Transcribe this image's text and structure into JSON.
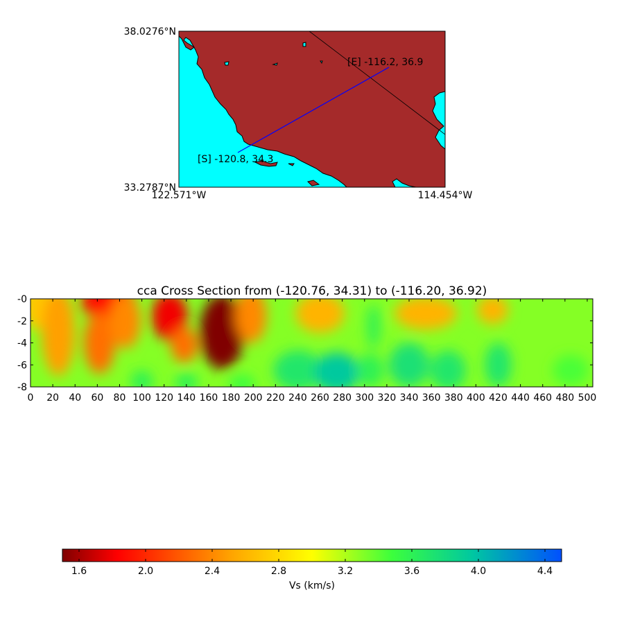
{
  "map": {
    "lat_top_label": "38.0276°N",
    "lat_bottom_label": "33.2787°N",
    "lon_left_label": "122.571°W",
    "lon_right_label": "114.454°W",
    "start_label": "[S] -120.8, 34.3",
    "end_label": "[E] -116.2, 36.9",
    "land_color": "#a52a2a",
    "water_color": "#00ffff",
    "profile_line_color": "#0000ff"
  },
  "chart_data": [
    {
      "type": "heatmap",
      "title": "cca Cross Section from (-120.76, 34.31) to (-116.20, 36.92)",
      "xlabel": "",
      "ylabel": "",
      "xlim": [
        0,
        505
      ],
      "ylim": [
        -8,
        0
      ],
      "x_ticks": [
        "0",
        "20",
        "40",
        "60",
        "80",
        "100",
        "120",
        "140",
        "160",
        "180",
        "200",
        "220",
        "240",
        "260",
        "280",
        "300",
        "320",
        "340",
        "360",
        "380",
        "400",
        "420",
        "440",
        "460",
        "480",
        "500"
      ],
      "y_ticks": [
        "-0",
        "-2",
        "-4",
        "-6",
        "-8"
      ],
      "vs_anomalies": [
        {
          "x": 5,
          "y": -0.3,
          "vs": 2.7,
          "rx": 12,
          "ry": 2.5
        },
        {
          "x": 25,
          "y": -3.0,
          "vs": 2.5,
          "rx": 15,
          "ry": 4.0
        },
        {
          "x": 70,
          "y": -0.3,
          "vs": 1.9,
          "rx": 25,
          "ry": 1.6
        },
        {
          "x": 62,
          "y": -4.0,
          "vs": 2.3,
          "rx": 14,
          "ry": 2.8
        },
        {
          "x": 85,
          "y": -2.0,
          "vs": 2.4,
          "rx": 14,
          "ry": 2.5
        },
        {
          "x": 125,
          "y": -1.6,
          "vs": 1.8,
          "rx": 16,
          "ry": 2.2
        },
        {
          "x": 138,
          "y": -4.2,
          "vs": 2.3,
          "rx": 12,
          "ry": 1.6
        },
        {
          "x": 172,
          "y": -3.0,
          "vs": 1.5,
          "rx": 20,
          "ry": 3.4
        },
        {
          "x": 198,
          "y": -1.5,
          "vs": 2.4,
          "rx": 14,
          "ry": 2.5
        },
        {
          "x": 260,
          "y": -1.3,
          "vs": 2.6,
          "rx": 22,
          "ry": 1.8
        },
        {
          "x": 355,
          "y": -1.3,
          "vs": 2.6,
          "rx": 28,
          "ry": 1.5
        },
        {
          "x": 415,
          "y": -1.0,
          "vs": 2.6,
          "rx": 14,
          "ry": 1.3
        },
        {
          "x": 100,
          "y": -7.5,
          "vs": 3.6,
          "rx": 10,
          "ry": 1.0
        },
        {
          "x": 140,
          "y": -7.6,
          "vs": 3.6,
          "rx": 10,
          "ry": 0.9
        },
        {
          "x": 190,
          "y": -7.7,
          "vs": 3.5,
          "rx": 12,
          "ry": 0.8
        },
        {
          "x": 240,
          "y": -6.5,
          "vs": 3.7,
          "rx": 22,
          "ry": 1.8
        },
        {
          "x": 275,
          "y": -6.7,
          "vs": 3.95,
          "rx": 20,
          "ry": 1.8
        },
        {
          "x": 308,
          "y": -2.5,
          "vs": 3.6,
          "rx": 6,
          "ry": 2.0
        },
        {
          "x": 305,
          "y": -6.5,
          "vs": 3.6,
          "rx": 12,
          "ry": 1.5
        },
        {
          "x": 340,
          "y": -6.0,
          "vs": 3.75,
          "rx": 18,
          "ry": 2.0
        },
        {
          "x": 375,
          "y": -6.5,
          "vs": 3.7,
          "rx": 16,
          "ry": 1.8
        },
        {
          "x": 420,
          "y": -6.0,
          "vs": 3.7,
          "rx": 12,
          "ry": 2.0
        },
        {
          "x": 485,
          "y": -6.5,
          "vs": 3.45,
          "rx": 16,
          "ry": 1.4
        }
      ],
      "background_vs": 3.3
    },
    {
      "type": "colorbar",
      "xlabel": "Vs (km/s)",
      "range": [
        1.5,
        4.5
      ],
      "ticks": [
        "1.6",
        "2.0",
        "2.4",
        "2.8",
        "3.2",
        "3.6",
        "4.0",
        "4.4"
      ],
      "colormap": "jet_r"
    }
  ]
}
